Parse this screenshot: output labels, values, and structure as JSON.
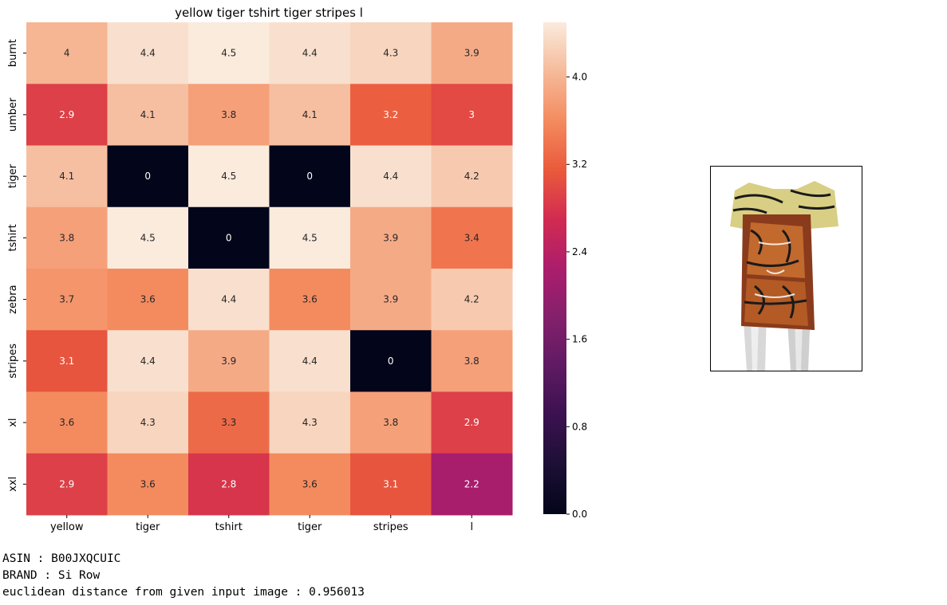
{
  "chart_data": {
    "type": "heatmap",
    "title": "yellow tiger tshirt tiger stripes  l",
    "x_categories": [
      "yellow",
      "tiger",
      "tshirt",
      "tiger",
      "stripes",
      "l"
    ],
    "y_categories": [
      "burnt",
      "umber",
      "tiger",
      "tshirt",
      "zebra",
      "stripes",
      "xl",
      "xxl"
    ],
    "values": [
      [
        4,
        4.4,
        4.5,
        4.4,
        4.3,
        3.9
      ],
      [
        2.9,
        4.1,
        3.8,
        4.1,
        3.2,
        3
      ],
      [
        4.1,
        0,
        4.5,
        0,
        4.4,
        4.2
      ],
      [
        3.8,
        4.5,
        0,
        4.5,
        3.9,
        3.4
      ],
      [
        3.7,
        3.6,
        4.4,
        3.6,
        3.9,
        4.2
      ],
      [
        3.1,
        4.4,
        3.9,
        4.4,
        0,
        3.8
      ],
      [
        3.6,
        4.3,
        3.3,
        4.3,
        3.8,
        2.9
      ],
      [
        2.9,
        3.6,
        2.8,
        3.6,
        3.1,
        2.2
      ]
    ],
    "colormap": "rocket",
    "colorbar": {
      "range": [
        0,
        4.5
      ],
      "ticks": [
        "0.0",
        "0.8",
        "1.6",
        "2.4",
        "3.2",
        "4.0"
      ]
    },
    "annotated": true
  },
  "info": {
    "asin": "ASIN : B00JXQCUIC",
    "brand": "BRAND : Si Row",
    "distance": "euclidean distance from given input image : 0.956013"
  }
}
